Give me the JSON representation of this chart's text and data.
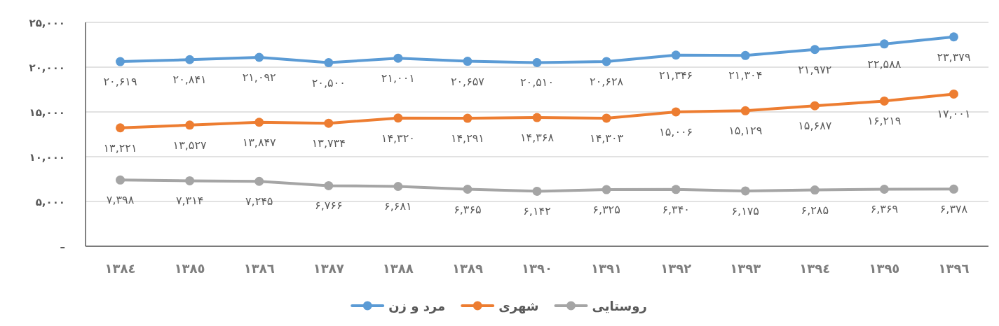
{
  "chart_data": {
    "type": "line",
    "categories": [
      "١٣٨٤",
      "١٣٨٥",
      "١٣٨٦",
      "١٣٨٧",
      "١٣٨٨",
      "١٣٨٩",
      "١٣٩٠",
      "١٣٩١",
      "١٣٩٢",
      "١٣٩٣",
      "١٣٩٤",
      "١٣٩٥",
      "١٣٩٦"
    ],
    "series": [
      {
        "name": "مرد و زن",
        "color": "#5b9bd5",
        "values": [
          20619,
          20841,
          21092,
          20500,
          21001,
          20657,
          20510,
          20628,
          21346,
          21304,
          21972,
          22588,
          23379
        ],
        "value_labels": [
          "۲۰,۶۱۹",
          "۲۰,۸۴۱",
          "۲۱,۰۹۲",
          "۲۰,۵۰۰",
          "۲۱,۰۰۱",
          "۲۰,۶۵۷",
          "۲۰,۵۱۰",
          "۲۰,۶۲۸",
          "۲۱,۳۴۶",
          "۲۱,۳۰۴",
          "۲۱,۹۷۲",
          "۲۲,۵۸۸",
          "۲۳,۳۷۹"
        ]
      },
      {
        "name": "شهری",
        "color": "#ed7d31",
        "values": [
          13221,
          13527,
          13847,
          13734,
          14320,
          14291,
          14368,
          14303,
          15006,
          15129,
          15687,
          16219,
          17001
        ],
        "value_labels": [
          "۱۳,۲۲۱",
          "۱۳,۵۲۷",
          "۱۳,۸۴۷",
          "۱۳,۷۳۴",
          "۱۴,۳۲۰",
          "۱۴,۲۹۱",
          "۱۴,۳۶۸",
          "۱۴,۳۰۳",
          "۱۵,۰۰۶",
          "۱۵,۱۲۹",
          "۱۵,۶۸۷",
          "۱۶,۲۱۹",
          "۱۷,۰۰۱"
        ]
      },
      {
        "name": "روستایی",
        "color": "#a5a5a5",
        "values": [
          7398,
          7314,
          7245,
          6766,
          6681,
          6365,
          6142,
          6325,
          6340,
          6175,
          6285,
          6369,
          6378
        ],
        "value_labels": [
          "۷,۳۹۸",
          "۷,۳۱۴",
          "۷,۲۴۵",
          "۶,۷۶۶",
          "۶,۶۸۱",
          "۶,۳۶۵",
          "۶,۱۴۲",
          "۶,۳۲۵",
          "۶,۳۴۰",
          "۶,۱۷۵",
          "۶,۲۸۵",
          "۶,۳۶۹",
          "۶,۳۷۸"
        ]
      }
    ],
    "ylim": [
      0,
      25000
    ],
    "yticks": [
      {
        "value": 0,
        "label": "–"
      },
      {
        "value": 5000,
        "label": "۵,۰۰۰"
      },
      {
        "value": 10000,
        "label": "۱۰,۰۰۰"
      },
      {
        "value": 15000,
        "label": "۱۵,۰۰۰"
      },
      {
        "value": 20000,
        "label": "۲۰,۰۰۰"
      },
      {
        "value": 25000,
        "label": "۲۵,۰۰۰"
      }
    ],
    "grid": "y",
    "legend": "bottom",
    "marker": "circle",
    "line_style": "solid"
  }
}
